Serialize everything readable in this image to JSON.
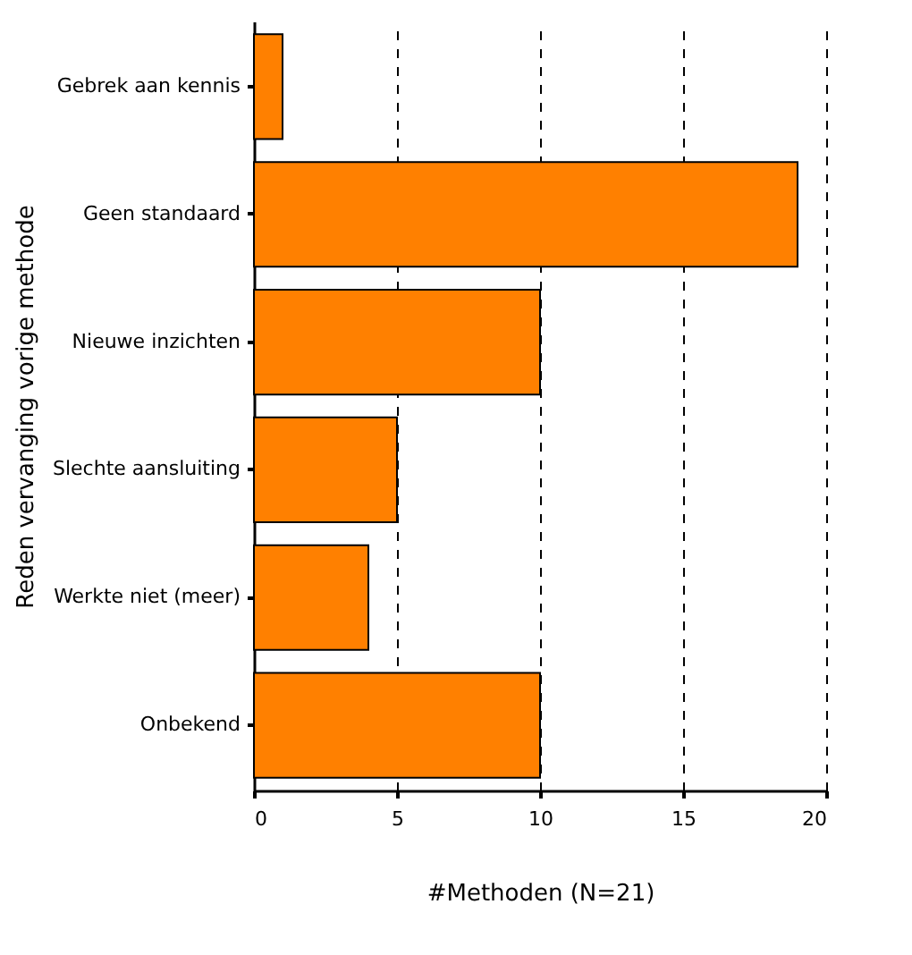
{
  "chart_data": {
    "type": "bar",
    "orientation": "horizontal",
    "categories": [
      "Gebrek aan kennis",
      "Geen standaard",
      "Nieuwe inzichten",
      "Slechte aansluiting",
      "Werkte niet (meer)",
      "Onbekend"
    ],
    "values": [
      1,
      19,
      10,
      5,
      4,
      10
    ],
    "color": "#ff8000",
    "xlim": [
      0,
      20
    ],
    "xticks": [
      0,
      5,
      10,
      15,
      20
    ],
    "xlabel": "#Methoden (N=21)",
    "ylabel": "Reden vervanging vorige methode",
    "grid": "x"
  }
}
